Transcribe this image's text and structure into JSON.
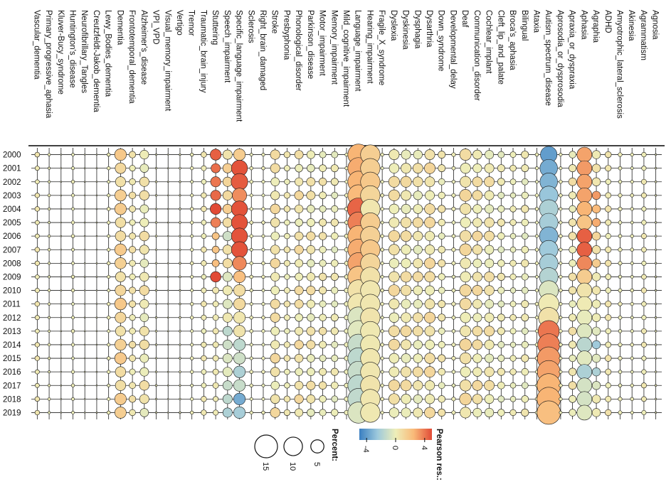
{
  "chart_data": {
    "type": "heatmap",
    "title": "",
    "xlabel": "",
    "ylabel": "",
    "rows": [
      "2000",
      "2001",
      "2002",
      "2003",
      "2004",
      "2005",
      "2006",
      "2007",
      "2008",
      "2009",
      "2010",
      "2011",
      "2012",
      "2013",
      "2014",
      "2015",
      "2016",
      "2017",
      "2018",
      "2019"
    ],
    "columns": [
      "Vascular_dementia",
      "Primary_progressive_aphasia",
      "Kluver-Bucy_syndrome",
      "Huntington's_disease",
      "Neurofibrillary_Tangles",
      "Creutzfeldt-Jakob_dementia",
      "Lewy_Bodies_dementia",
      "Dementia",
      "Frontotemporal_dementia",
      "Alzheimer's_disease",
      "VPI_VPD",
      "Visual_memory_impairment",
      "Vertigo",
      "Tremor",
      "Traumatic_brain_injury",
      "Stuttering",
      "Speech_impairment",
      "Specific_language_impairment",
      "Sclerosis",
      "Right_brain_damaged",
      "Stroke",
      "Presbyphonia",
      "Phonological_disorder",
      "Parkinson_disease",
      "Motor_impairment",
      "Memory_impairment",
      "Mild_cognitive_impairment",
      "Language_impairment",
      "Hearing_impairment",
      "Fragile_X_syndrome",
      "Dyslexia",
      "Dyskinesia",
      "Dysphagia",
      "Dysarthria",
      "Down_syndrome",
      "Developmental_delay",
      "Deaf",
      "Communication_disorder",
      "Cochlear_implant",
      "Cleft_lip_and_palate",
      "Broca's_aphasia",
      "Bilingual",
      "Ataxia",
      "Autism_spectrum_disease",
      "Aprosodia_or_dysprosodia",
      "Apraxia_or_dyspraxia",
      "Aphasia",
      "Agraphia",
      "ADHD",
      "Amyotrophic_lateral_sclerosis",
      "Akinesia",
      "Agrammatism",
      "Agnosia"
    ],
    "cell_encoding": {
      "size": "Percent",
      "color": "Pearson residual"
    },
    "column_profiles": {
      "Vascular_dementia": {
        "percent": 0.6,
        "residual": 0.3
      },
      "Primary_progressive_aphasia": {
        "percent": 0.2,
        "residual": 0
      },
      "Kluver-Bucy_syndrome": {
        "percent": 0.05,
        "residual": 0
      },
      "Huntington's_disease": {
        "percent": 0.3,
        "residual": 0
      },
      "Neurofibrillary_Tangles": {
        "percent": 0.05,
        "residual": 0
      },
      "Creutzfeldt-Jakob_dementia": {
        "percent": 0.05,
        "residual": 0
      },
      "Lewy_Bodies_dementia": {
        "percent": 0.3,
        "residual": 0
      },
      "Dementia": {
        "percent": 3.5,
        "residual": 1.2
      },
      "Frontotemporal_dementia": {
        "percent": 1.2,
        "residual": 0.4
      },
      "Alzheimer's_disease": {
        "percent": 2.4,
        "residual": 0.3
      },
      "VPI_VPD": {
        "percent": 0.1,
        "residual": 0
      },
      "Visual_memory_impairment": {
        "percent": 0.05,
        "residual": 0
      },
      "Vertigo": {
        "percent": 0.1,
        "residual": 0
      },
      "Tremor": {
        "percent": 0.3,
        "residual": 0
      },
      "Traumatic_brain_injury": {
        "percent": 0.8,
        "residual": 0.2
      },
      "Stuttering": {
        "percent": 1.6,
        "residual": 0
      },
      "Speech_impairment": {
        "percent": 2.6,
        "residual": 0
      },
      "Specific_language_impairment": {
        "percent": 4.5,
        "residual": 0
      },
      "Sclerosis": {
        "percent": 0.3,
        "residual": 0
      },
      "Right_brain_damaged": {
        "percent": 0.3,
        "residual": 0
      },
      "Stroke": {
        "percent": 2.4,
        "residual": 0.5
      },
      "Presbyphonia": {
        "percent": 1.0,
        "residual": 0.2
      },
      "Phonological_disorder": {
        "percent": 2.0,
        "residual": 0.5
      },
      "Parkinson_disease": {
        "percent": 2.0,
        "residual": 0.3
      },
      "Motor_impairment": {
        "percent": 1.5,
        "residual": 0.2
      },
      "Memory_impairment": {
        "percent": 1.4,
        "residual": 0
      },
      "Mild_cognitive_impairment": {
        "percent": 0.5,
        "residual": 0
      },
      "Language_impairment": {
        "percent": 14.0,
        "residual": 0
      },
      "Hearing_impairment": {
        "percent": 11.0,
        "residual": 0
      },
      "Fragile_X_syndrome": {
        "percent": 0.3,
        "residual": 0
      },
      "Dyslexia": {
        "percent": 3.2,
        "residual": 0.5
      },
      "Dyskinesia": {
        "percent": 3.0,
        "residual": 0.4
      },
      "Dysphagia": {
        "percent": 2.6,
        "residual": 0.3
      },
      "Dysarthria": {
        "percent": 3.0,
        "residual": 0.6
      },
      "Down_syndrome": {
        "percent": 1.4,
        "residual": 0.2
      },
      "Developmental_delay": {
        "percent": 0.4,
        "residual": 0
      },
      "Deaf": {
        "percent": 3.6,
        "residual": 0.6
      },
      "Communication_disorder": {
        "percent": 2.6,
        "residual": 0.5
      },
      "Cochlear_implant": {
        "percent": 2.6,
        "residual": 0.3
      },
      "Cleft_lip_and_palate": {
        "percent": 1.4,
        "residual": 0
      },
      "Broca's_aphasia": {
        "percent": 1.0,
        "residual": 0
      },
      "Bilingual": {
        "percent": 1.4,
        "residual": 0
      },
      "Ataxia": {
        "percent": 0.3,
        "residual": 0
      },
      "Autism_spectrum_disease": {
        "percent": 12.0,
        "residual": 0
      },
      "Aprosodia_or_dysprosodia": {
        "percent": 0.3,
        "residual": 0
      },
      "Apraxia_or_dyspraxia": {
        "percent": 1.6,
        "residual": 0.3
      },
      "Aphasia": {
        "percent": 6.5,
        "residual": 0
      },
      "Agraphia": {
        "percent": 2.0,
        "residual": 0.4
      },
      "ADHD": {
        "percent": 1.0,
        "residual": 0.3
      },
      "Amyotrophic_lateral_sclerosis": {
        "percent": 0.4,
        "residual": 0
      },
      "Akinesia": {
        "percent": 0.3,
        "residual": 0
      },
      "Agrammatism": {
        "percent": 0.7,
        "residual": 0.2
      },
      "Agnosia": {
        "percent": 0.1,
        "residual": 0
      }
    },
    "column_trends": {
      "Stuttering": {
        "residual": [
          4.5,
          4.2,
          4.0,
          4.3,
          5.0,
          3.8,
          2.0,
          2.0,
          2.2,
          5.0,
          0.4,
          0.2,
          0.2,
          0.4,
          0.3,
          0.3,
          0.3,
          0.3,
          0.2,
          0.2
        ],
        "percent": [
          3.5,
          2.5,
          3.0,
          3.0,
          3.5,
          2.8,
          1.5,
          1.5,
          1.5,
          3.2,
          1.2,
          1.0,
          1.0,
          1.0,
          1.0,
          1.0,
          1.0,
          1.0,
          0.8,
          0.8
        ]
      },
      "Speech_impairment": {
        "residual": [
          0.5,
          1.5,
          1.2,
          1.0,
          1.5,
          0.8,
          -1.0,
          0.6,
          0.8,
          -0.5,
          0.2,
          -0.5,
          0.3,
          -1.5,
          -1.0,
          -0.6,
          -0.3,
          -1.2,
          -1.5,
          -2.0
        ],
        "percent": [
          2.6,
          2.6,
          2.6,
          2.6,
          2.6,
          2.6,
          2.6,
          2.6,
          2.6,
          2.6,
          2.6,
          2.6,
          2.6,
          2.6,
          2.6,
          2.6,
          2.6,
          2.6,
          2.6,
          2.6
        ]
      },
      "Specific_language_impairment": {
        "residual": [
          1.6,
          4.8,
          4.6,
          3.5,
          4.8,
          4.8,
          4.8,
          4.8,
          3.6,
          2.2,
          0.8,
          1.0,
          0.4,
          0.5,
          -1.5,
          -1.0,
          -2.0,
          -1.2,
          -3.5,
          -2.2
        ],
        "percent": [
          4.0,
          7.5,
          8.0,
          6.0,
          7.5,
          7.5,
          7.5,
          7.5,
          5.5,
          4.0,
          4.0,
          4.0,
          4.0,
          4.0,
          4.0,
          4.0,
          4.0,
          4.0,
          4.0,
          4.0
        ]
      },
      "Mild_cognitive_impairment": {
        "residual": [
          0,
          0,
          0,
          0,
          0,
          0,
          0,
          0,
          0,
          0,
          0,
          0,
          0,
          0,
          0,
          0,
          0,
          0,
          0,
          0
        ],
        "percent": [
          0.3,
          0.3,
          0.3,
          0.4,
          0.4,
          0.4,
          0.5,
          0.5,
          0.5,
          0.5,
          0.6,
          0.6,
          0.6,
          0.6,
          0.6,
          0.6,
          0.6,
          0.6,
          0.6,
          0.6
        ]
      },
      "Language_impairment": {
        "residual": [
          2.6,
          2.8,
          2.6,
          2.4,
          4.4,
          3.8,
          2.6,
          2.8,
          3.0,
          2.0,
          0.6,
          0.4,
          -0.6,
          -0.4,
          -1.2,
          -1.5,
          -1.2,
          -1.5,
          -1.4,
          -0.6
        ],
        "percent": [
          13,
          13,
          13,
          13,
          14,
          13,
          13,
          13,
          13,
          13,
          13,
          13,
          13,
          13,
          13,
          13,
          13,
          13,
          13,
          13
        ]
      },
      "Hearing_impairment": {
        "residual": [
          1.5,
          1.5,
          1.8,
          1.2,
          0.4,
          1.6,
          1.4,
          1.8,
          1.2,
          0.6,
          0.4,
          0.4,
          0.5,
          0.3,
          0.3,
          0.4,
          0.4,
          0.5,
          0.4,
          0.3
        ],
        "percent": [
          11,
          11,
          11,
          11,
          11,
          11,
          11,
          11,
          11,
          11,
          11,
          11,
          11,
          11,
          11,
          11,
          11,
          11,
          11,
          11
        ]
      },
      "Autism_spectrum_disease": {
        "residual": [
          -4.0,
          -3.5,
          -3.2,
          -2.6,
          -2.0,
          -2.2,
          -3.2,
          -2.4,
          -2.2,
          -1.8,
          -0.6,
          0.2,
          0.6,
          4.0,
          3.8,
          3.2,
          3.0,
          2.6,
          2.6,
          2.2
        ],
        "percent": [
          8,
          9,
          9,
          10,
          10,
          10,
          10,
          10,
          10,
          10,
          11,
          12,
          12,
          13,
          14,
          15,
          15,
          16,
          16,
          16
        ]
      },
      "Aphasia": {
        "residual": [
          3.0,
          3.2,
          3.0,
          3.0,
          2.6,
          2.0,
          4.5,
          4.5,
          3.6,
          1.6,
          0.5,
          0.2,
          -0.2,
          -0.5,
          -1.6,
          -0.4,
          -2.0,
          -0.8,
          -0.8,
          -0.5
        ],
        "percent": [
          6.5,
          6.5,
          6.5,
          6.5,
          6.5,
          6.5,
          6.5,
          6.5,
          6.5,
          6.5,
          6.5,
          6.5,
          6.5,
          6.5,
          6.5,
          6.5,
          6.5,
          6.5,
          6.5,
          6.5
        ]
      },
      "Agraphia": {
        "residual": [
          0.2,
          0.6,
          0.4,
          3.2,
          2.4,
          2.8,
          1.2,
          0.6,
          1.6,
          0.2,
          0.4,
          0.1,
          0.1,
          -0.4,
          -2.4,
          -0.4,
          -2.0,
          -0.6,
          0.3,
          0.2
        ],
        "percent": [
          2.0,
          2.0,
          2.0,
          2.0,
          2.0,
          2.0,
          2.0,
          2.0,
          2.0,
          2.0,
          2.0,
          2.0,
          2.0,
          2.0,
          2.0,
          2.0,
          2.0,
          2.0,
          2.0,
          2.0
        ]
      }
    },
    "legend": {
      "size_title": "Percent:",
      "size_values": [
        15,
        10,
        5
      ],
      "color_title": "Pearson res.:",
      "color_ticks": [
        -4,
        0,
        4
      ],
      "color_range": [
        -5,
        5
      ],
      "colors": [
        "#3a7fc1",
        "#9dc9dc",
        "#eeeeb9",
        "#f9b978",
        "#e14a36"
      ],
      "placement": "bottom"
    },
    "orientation": "rotated-90-clockwise"
  }
}
